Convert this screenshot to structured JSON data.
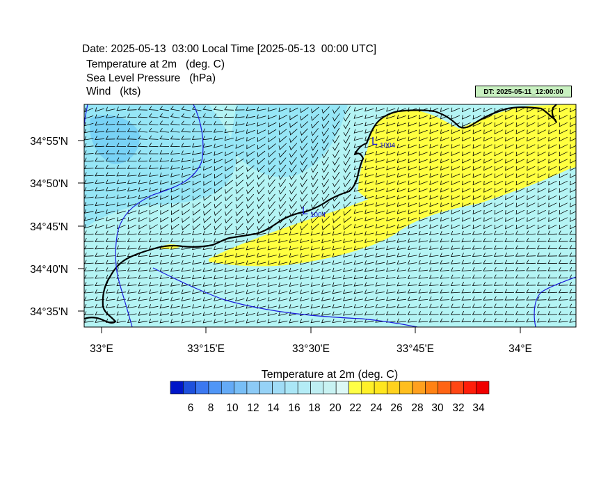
{
  "header": {
    "date_line": "Date: 2025-05-13  03:00 Local Time [2025-05-13  00:00 UTC]",
    "line1": "Temperature at 2m   (deg. C)",
    "line2": "Sea Level Pressure   (hPa)",
    "line3": "Wind   (kts)",
    "dt_badge": "DT: 2025-05-11_12:00:00"
  },
  "map": {
    "lat_labels": [
      "34°55'N",
      "34°50'N",
      "34°45'N",
      "34°40'N",
      "34°35'N"
    ],
    "lon_labels": [
      "33°E",
      "33°15'E",
      "33°30'E",
      "33°45'E",
      "34°E"
    ],
    "lows": [
      {
        "symbol": "L",
        "value": "1004"
      },
      {
        "symbol": "L",
        "value": "1004"
      }
    ],
    "colors": {
      "warm_fill": "#ffff40",
      "cool_fill": "#b4f4f4",
      "cool_mid": "#96e6f6",
      "cool_dark": "#78d2f6",
      "coast": "#000000",
      "isobar": "#1a1adc"
    }
  },
  "colorbar": {
    "title": "Temperature at 2m  (deg. C)",
    "labels": [
      "6",
      "8",
      "10",
      "12",
      "14",
      "16",
      "18",
      "20",
      "22",
      "24",
      "26",
      "28",
      "30",
      "32",
      "34"
    ],
    "colors": [
      "#0016c8",
      "#1e50dc",
      "#3c78f0",
      "#5096f6",
      "#64aaf6",
      "#78bef6",
      "#8ccaf6",
      "#96d2f6",
      "#a0dcf6",
      "#aae6f6",
      "#b4ecf6",
      "#beeef2",
      "#c8f2f2",
      "#dcf8f6",
      "#ffff46",
      "#fff028",
      "#ffe61e",
      "#ffd21e",
      "#ffbe1e",
      "#ffa01e",
      "#ff8214",
      "#ff6414",
      "#ff4614",
      "#ff1e0a",
      "#f00000"
    ]
  }
}
